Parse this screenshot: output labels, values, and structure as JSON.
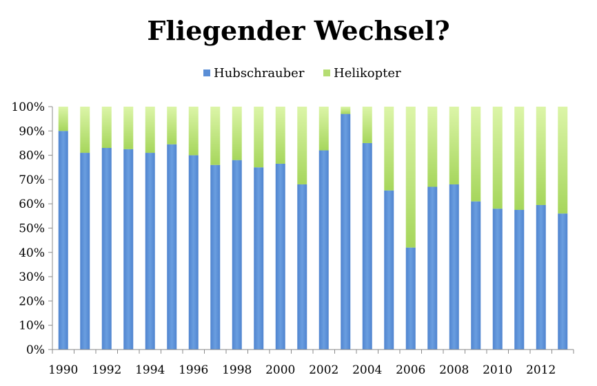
{
  "chart_data": {
    "type": "bar",
    "stacked": true,
    "percent": true,
    "title": "Fliegender Wechsel?",
    "categories": [
      "1990",
      "1991",
      "1992",
      "1993",
      "1994",
      "1995",
      "1996",
      "1997",
      "1998",
      "1999",
      "2000",
      "2001",
      "2002",
      "2003",
      "2004",
      "2005",
      "2006",
      "2007",
      "2008",
      "2009",
      "2010",
      "2011",
      "2012",
      "2013"
    ],
    "x_tick_labels": [
      "1990",
      "",
      "1992",
      "",
      "1994",
      "",
      "1996",
      "",
      "1998",
      "",
      "2000",
      "",
      "2002",
      "",
      "2004",
      "",
      "2006",
      "",
      "2008",
      "",
      "2010",
      "",
      "2012",
      ""
    ],
    "y_tick_labels": [
      "0%",
      "10%",
      "20%",
      "30%",
      "40%",
      "50%",
      "60%",
      "70%",
      "80%",
      "90%",
      "100%"
    ],
    "ylim": [
      0,
      100
    ],
    "legend_position": "top-center",
    "grid": false,
    "series": [
      {
        "name": "Hubschrauber",
        "color": "#5a8ed6",
        "values": [
          90,
          81,
          83,
          82.5,
          81,
          84.5,
          80,
          76,
          78,
          75,
          76.5,
          68,
          82,
          97,
          85,
          65.5,
          42,
          67,
          68,
          61,
          58,
          57.5,
          59.5,
          56
        ]
      },
      {
        "name": "Helikopter",
        "color": "#b5dd73",
        "values": [
          10,
          19,
          17,
          17.5,
          19,
          15.5,
          20,
          24,
          22,
          25,
          23.5,
          32,
          18,
          3,
          15,
          34.5,
          58,
          33,
          32,
          39,
          42,
          42.5,
          40.5,
          44
        ]
      }
    ]
  }
}
